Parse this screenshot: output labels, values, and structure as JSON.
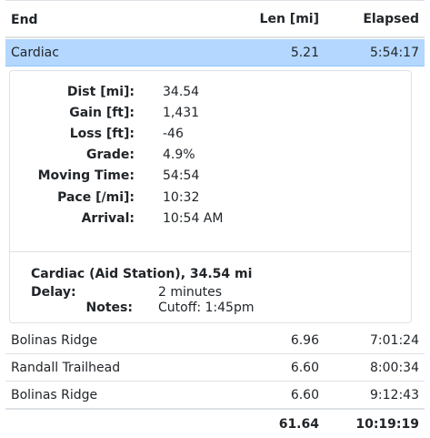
{
  "table": {
    "headers": {
      "end": "End",
      "len": "Len [mi]",
      "elapsed": "Elapsed"
    },
    "selected": {
      "end": "Cardiac",
      "len": "5.21",
      "elapsed": "5:54:17"
    },
    "details": {
      "stats": [
        {
          "label": "Dist [mi]:",
          "value": "34.54"
        },
        {
          "label": "Gain [ft]:",
          "value": "1,431"
        },
        {
          "label": "Loss [ft]:",
          "value": "-46"
        },
        {
          "label": "Grade:",
          "value": "4.9%"
        },
        {
          "label": "Moving Time:",
          "value": "54:54"
        },
        {
          "label": "Pace [/mi]:",
          "value": "10:32"
        },
        {
          "label": "Arrival:",
          "value": "10:54 AM"
        }
      ],
      "aid_station": {
        "title": "Cardiac (Aid Station), 34.54 mi",
        "delay_label": "Delay:",
        "delay_value": "2 minutes",
        "notes_label": "Notes:",
        "notes_value": "Cutoff: 1:45pm"
      }
    },
    "rows": [
      {
        "end": "Bolinas Ridge",
        "len": "6.96",
        "elapsed": "7:01:24"
      },
      {
        "end": "Randall Trailhead",
        "len": "6.60",
        "elapsed": "8:00:34"
      },
      {
        "end": "Bolinas Ridge",
        "len": "6.60",
        "elapsed": "9:12:43"
      }
    ],
    "totals": {
      "len": "61.64",
      "elapsed": "10:19:19"
    }
  }
}
